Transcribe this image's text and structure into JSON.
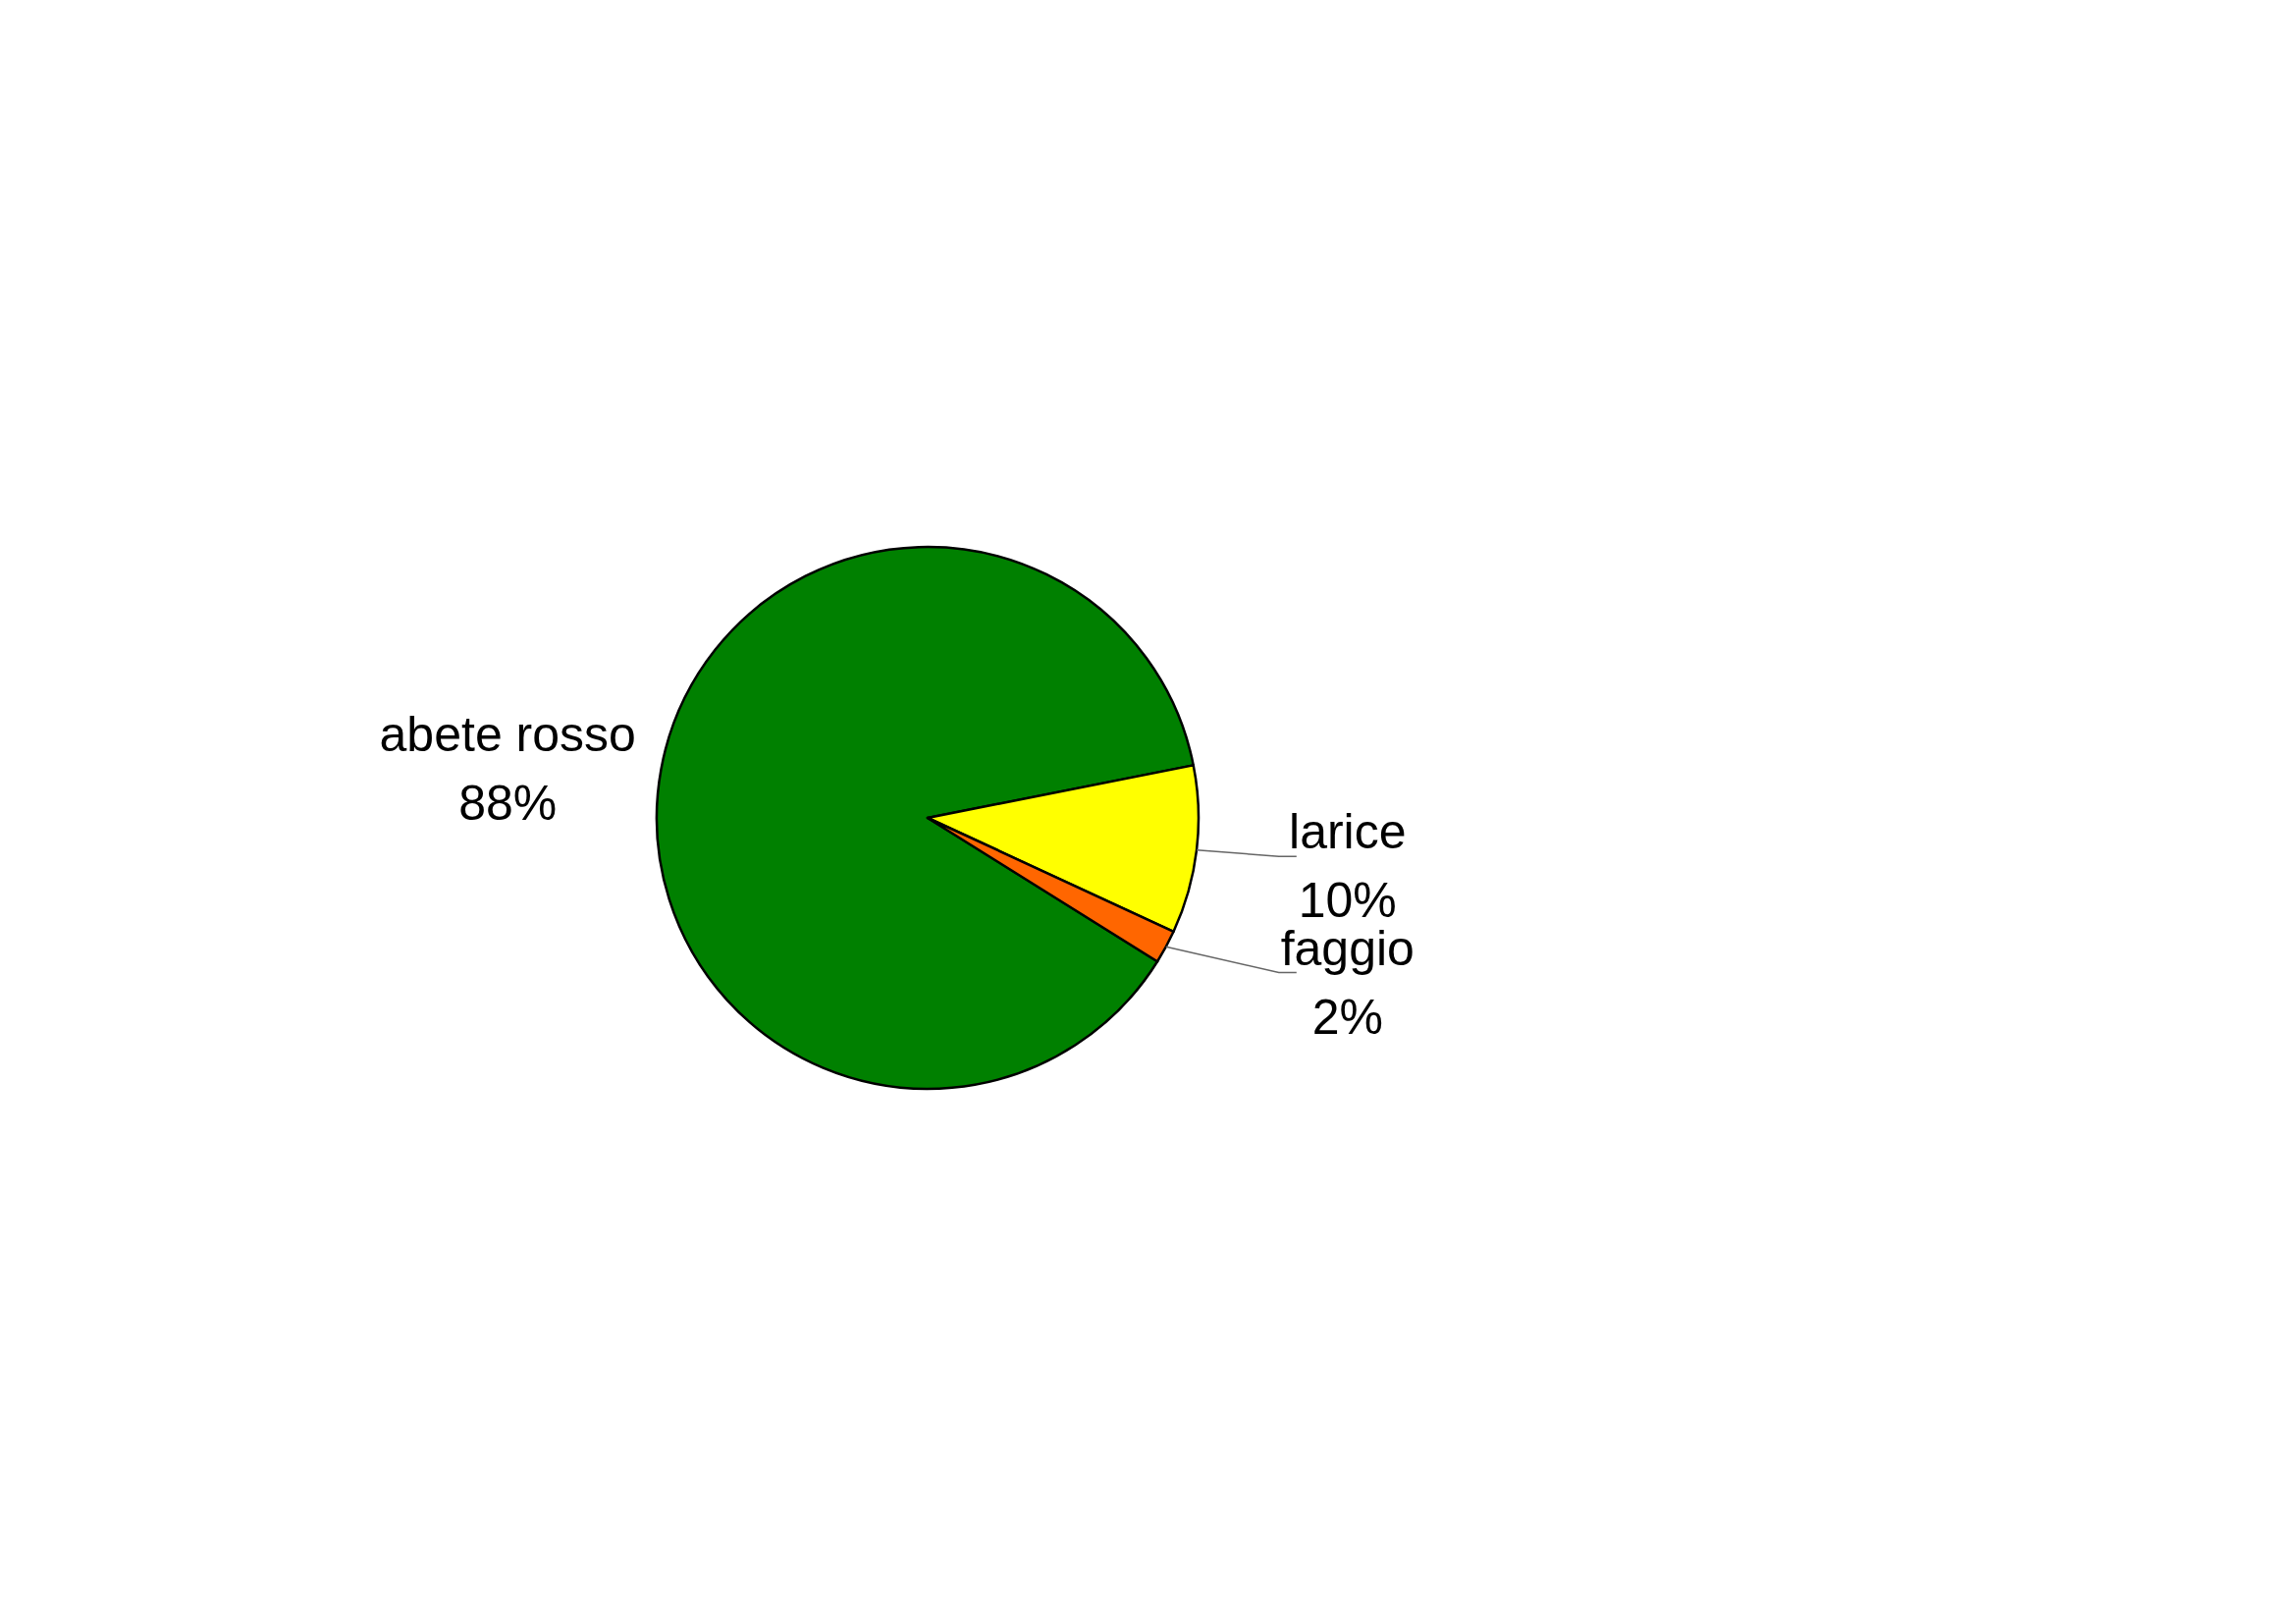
{
  "chart_data": {
    "type": "pie",
    "categories": [
      "abete rosso",
      "larice",
      "faggio"
    ],
    "values": [
      88,
      10,
      2
    ],
    "colors": [
      "#008000",
      "#ffff00",
      "#ff6600"
    ],
    "value_labels": [
      "88%",
      "10%",
      "2%"
    ]
  }
}
